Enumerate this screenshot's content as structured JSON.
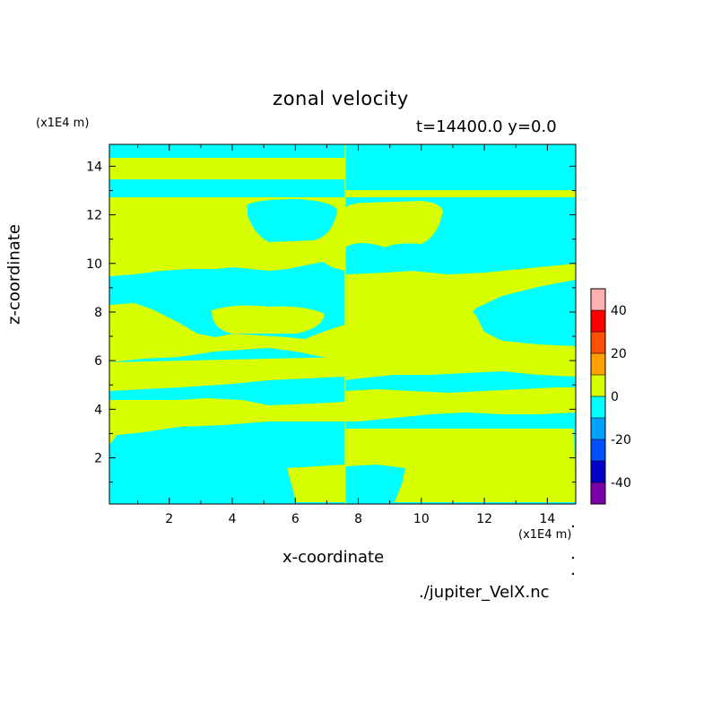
{
  "chart_data": {
    "type": "heatmap",
    "title": "zonal velocity",
    "subtitle": "t=14400.0 y=0.0",
    "xlabel": "x-coordinate",
    "ylabel": "z-coordinate",
    "x_unit": "(x1E4 m)",
    "z_unit": "(x1E4 m)",
    "xlim": [
      0.1,
      14.9
    ],
    "ylim": [
      0.1,
      14.9
    ],
    "x_ticks": [
      2,
      4,
      6,
      8,
      10,
      12,
      14
    ],
    "y_ticks": [
      2,
      4,
      6,
      8,
      10,
      12,
      14
    ],
    "colorbar": {
      "levels": [
        -50,
        -40,
        -30,
        -20,
        -10,
        0,
        10,
        20,
        30,
        40,
        50
      ],
      "tick_labels": [
        "-40",
        "-20",
        "0",
        "20",
        "40"
      ],
      "tick_values": [
        -40,
        -20,
        0,
        20,
        40
      ],
      "colors": [
        "#7b00a8",
        "#0000c8",
        "#0050ff",
        "#00a0ff",
        "#00ffff",
        "#d8ff00",
        "#ffa000",
        "#ff5000",
        "#ff0000",
        "#ffb0b0"
      ]
    },
    "field_colors": {
      "positive": "#d8ff00",
      "negative": "#00ffff"
    },
    "source": "./jupiter_VelX.nc"
  }
}
